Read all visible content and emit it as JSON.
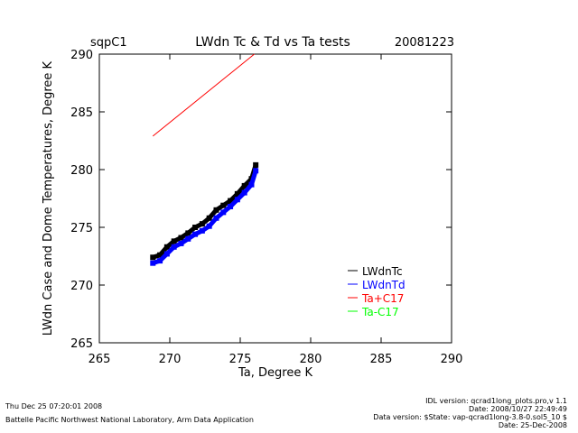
{
  "header": {
    "site": "sqpC1",
    "date": "20081223"
  },
  "footer": {
    "left": [
      "Thu Dec 25 07:20:01 2008",
      "Battelle Pacific Northwest National Laboratory, Arm Data Application"
    ],
    "right": [
      "IDL version: qcrad1long_plots.pro,v 1.1",
      "Date: 2008/10/27 22:49:49",
      "Data version: $State: vap-qcrad1long-3.8-0.sol5_10 $",
      "Date: 25-Dec-2008"
    ]
  },
  "chart_data": {
    "type": "scatter",
    "title": "LWdn Tc & Td vs Ta tests",
    "xlabel": "Ta, Degree K",
    "ylabel": "LWdn Case and Dome Temperatures, Degree K",
    "xlim": [
      265,
      290
    ],
    "ylim": [
      265,
      290
    ],
    "xticks": [
      "265",
      "270",
      "275",
      "280",
      "285",
      "290"
    ],
    "yticks": [
      "265",
      "270",
      "275",
      "280",
      "285",
      "290"
    ],
    "legend_position": "lower-right",
    "series": [
      {
        "name": "LWdnTc",
        "color": "#000000",
        "x": [
          268.8,
          269.3,
          269.8,
          270.3,
          270.8,
          271.3,
          271.8,
          272.3,
          272.8,
          273.3,
          273.8,
          274.3,
          274.8,
          275.3,
          275.8,
          276.1
        ],
        "y": [
          272.4,
          272.6,
          273.3,
          273.8,
          274.1,
          274.5,
          275.0,
          275.3,
          275.8,
          276.5,
          276.9,
          277.3,
          277.9,
          278.6,
          279.2,
          280.4
        ]
      },
      {
        "name": "LWdnTd",
        "color": "#0000ff",
        "x": [
          268.8,
          269.3,
          269.8,
          270.3,
          270.8,
          271.3,
          271.8,
          272.3,
          272.8,
          273.3,
          273.8,
          274.3,
          274.8,
          275.3,
          275.8,
          276.1
        ],
        "y": [
          271.9,
          272.1,
          272.7,
          273.3,
          273.6,
          274.0,
          274.4,
          274.7,
          275.1,
          275.8,
          276.3,
          276.8,
          277.4,
          278.0,
          278.7,
          279.9
        ]
      },
      {
        "name": "Ta+C17",
        "color": "#ff0000",
        "x": [
          268.8,
          276.0
        ],
        "y": [
          282.9,
          290.0
        ]
      },
      {
        "name": "Ta-C17",
        "color": "#00ff00",
        "x": [],
        "y": []
      }
    ]
  }
}
